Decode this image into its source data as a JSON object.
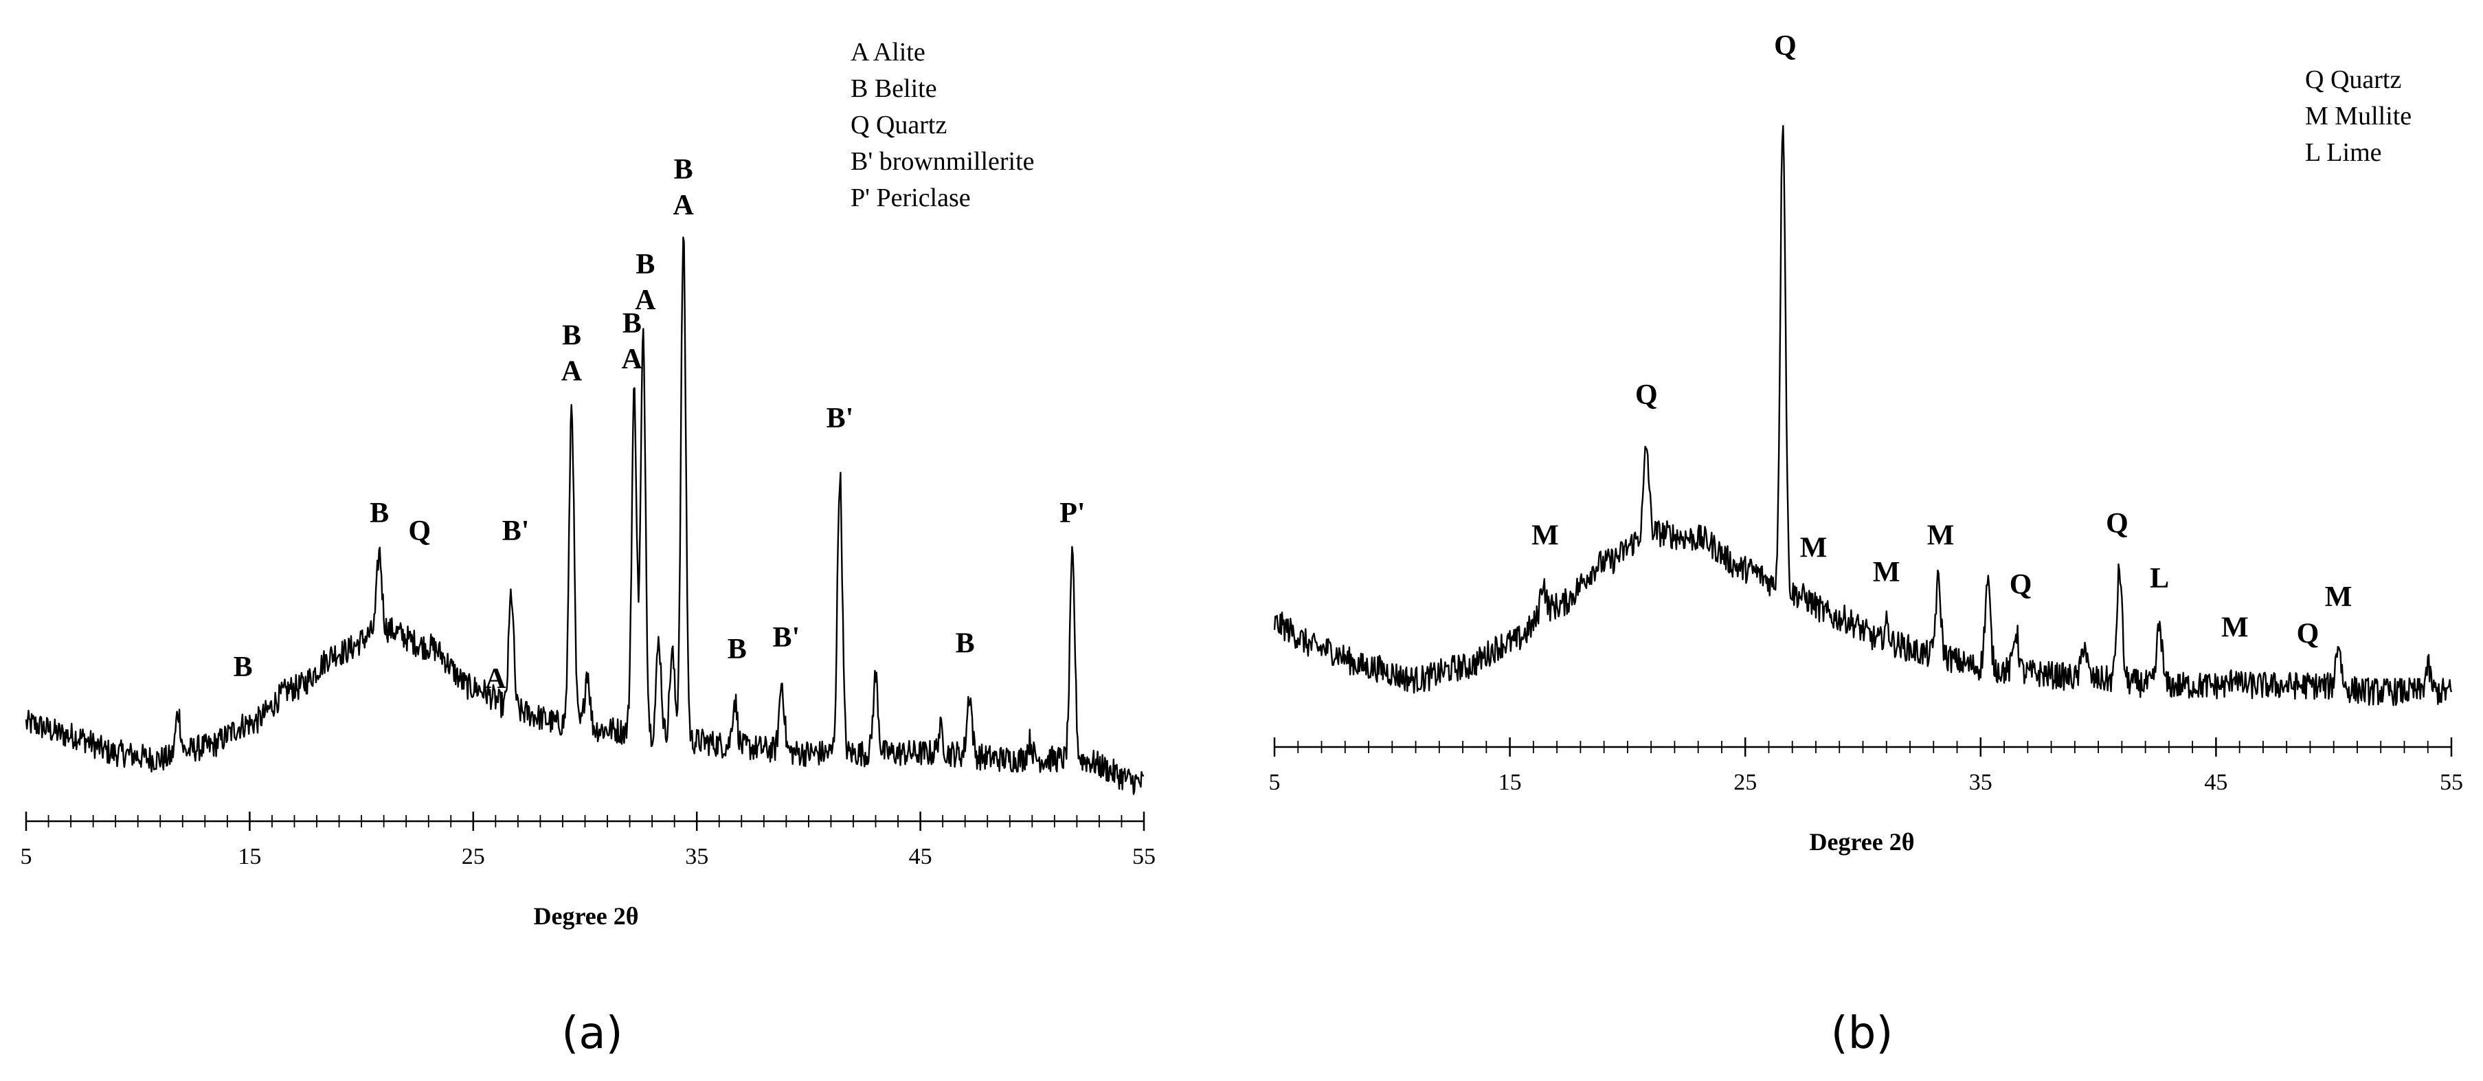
{
  "chart_data": [
    {
      "type": "line",
      "panel": "(a)",
      "xlabel": "Degree 2θ",
      "ylabel": "",
      "xlim": [
        5,
        55
      ],
      "xticks": [
        5,
        15,
        25,
        35,
        45,
        55
      ],
      "grid": false,
      "legend_position": "top-right",
      "legend": [
        "A Alite",
        "B Belite",
        "Q Quartz",
        "B' brownmillerite",
        "P' Periclase"
      ],
      "baseline": [
        [
          5,
          0.08
        ],
        [
          7,
          0.06
        ],
        [
          9,
          0.03
        ],
        [
          11,
          0.02
        ],
        [
          13,
          0.04
        ],
        [
          15,
          0.08
        ],
        [
          17,
          0.14
        ],
        [
          19,
          0.2
        ],
        [
          21,
          0.24
        ],
        [
          23,
          0.21
        ],
        [
          25,
          0.14
        ],
        [
          27,
          0.1
        ],
        [
          29,
          0.08
        ],
        [
          31,
          0.07
        ],
        [
          33,
          0.06
        ],
        [
          35,
          0.05
        ],
        [
          37,
          0.04
        ],
        [
          40,
          0.03
        ],
        [
          43,
          0.03
        ],
        [
          46,
          0.03
        ],
        [
          49,
          0.02
        ],
        [
          52,
          0.02
        ],
        [
          55,
          -0.02
        ]
      ],
      "peaks": [
        {
          "x": 11.8,
          "y": 0.1
        },
        {
          "x": 20.8,
          "y": 0.37
        },
        {
          "x": 26.7,
          "y": 0.3
        },
        {
          "x": 29.4,
          "y": 0.62
        },
        {
          "x": 30.1,
          "y": 0.17
        },
        {
          "x": 32.2,
          "y": 0.64
        },
        {
          "x": 32.6,
          "y": 0.73
        },
        {
          "x": 33.3,
          "y": 0.22
        },
        {
          "x": 33.9,
          "y": 0.2
        },
        {
          "x": 34.4,
          "y": 0.9
        },
        {
          "x": 36.7,
          "y": 0.12
        },
        {
          "x": 38.8,
          "y": 0.15
        },
        {
          "x": 41.4,
          "y": 0.5
        },
        {
          "x": 43.0,
          "y": 0.16
        },
        {
          "x": 45.9,
          "y": 0.07
        },
        {
          "x": 47.2,
          "y": 0.13
        },
        {
          "x": 49.9,
          "y": 0.05
        },
        {
          "x": 51.8,
          "y": 0.36
        }
      ],
      "ylim": [
        -0.05,
        1.0
      ],
      "annotations": [
        {
          "x": 14.7,
          "y": 0.16,
          "lines": [
            "B"
          ]
        },
        {
          "x": 20.8,
          "y": 0.42,
          "lines": [
            "B"
          ]
        },
        {
          "x": 22.6,
          "y": 0.39,
          "lines": [
            "Q"
          ]
        },
        {
          "x": 26.0,
          "y": 0.14,
          "lines": [
            "A"
          ]
        },
        {
          "x": 26.9,
          "y": 0.39,
          "lines": [
            "B'"
          ]
        },
        {
          "x": 29.4,
          "y": 0.72,
          "lines": [
            "B",
            "A"
          ]
        },
        {
          "x": 32.1,
          "y": 0.74,
          "lines": [
            "B",
            "A"
          ]
        },
        {
          "x": 32.7,
          "y": 0.84,
          "lines": [
            "B",
            "A"
          ]
        },
        {
          "x": 34.4,
          "y": 1.0,
          "lines": [
            "B",
            "A"
          ]
        },
        {
          "x": 36.8,
          "y": 0.19,
          "lines": [
            "B"
          ]
        },
        {
          "x": 39.0,
          "y": 0.21,
          "lines": [
            "B'"
          ]
        },
        {
          "x": 41.4,
          "y": 0.58,
          "lines": [
            "B'"
          ]
        },
        {
          "x": 47.0,
          "y": 0.2,
          "lines": [
            "B"
          ]
        },
        {
          "x": 51.8,
          "y": 0.42,
          "lines": [
            "P'"
          ]
        }
      ]
    },
    {
      "type": "line",
      "panel": "(b)",
      "xlabel": "Degree 2θ",
      "ylabel": "",
      "xlim": [
        5,
        55
      ],
      "xticks": [
        5,
        15,
        25,
        35,
        45,
        55
      ],
      "grid": false,
      "legend_position": "top-right",
      "legend": [
        "Q Quartz",
        "M Mullite",
        "L Lime"
      ],
      "baseline": [
        [
          5,
          0.17
        ],
        [
          7,
          0.13
        ],
        [
          9,
          0.1
        ],
        [
          11,
          0.08
        ],
        [
          13,
          0.1
        ],
        [
          15,
          0.14
        ],
        [
          17,
          0.2
        ],
        [
          19,
          0.27
        ],
        [
          21,
          0.32
        ],
        [
          23,
          0.31
        ],
        [
          25,
          0.26
        ],
        [
          27,
          0.22
        ],
        [
          29,
          0.18
        ],
        [
          31,
          0.14
        ],
        [
          33,
          0.12
        ],
        [
          35,
          0.1
        ],
        [
          37,
          0.09
        ],
        [
          40,
          0.08
        ],
        [
          43,
          0.07
        ],
        [
          46,
          0.07
        ],
        [
          49,
          0.07
        ],
        [
          52,
          0.06
        ],
        [
          55,
          0.06
        ]
      ],
      "peaks": [
        {
          "x": 16.4,
          "y": 0.24
        },
        {
          "x": 20.8,
          "y": 0.46
        },
        {
          "x": 26.6,
          "y": 1.0
        },
        {
          "x": 31.0,
          "y": 0.17
        },
        {
          "x": 33.2,
          "y": 0.24
        },
        {
          "x": 35.3,
          "y": 0.24
        },
        {
          "x": 36.5,
          "y": 0.16
        },
        {
          "x": 39.4,
          "y": 0.14
        },
        {
          "x": 40.9,
          "y": 0.26
        },
        {
          "x": 42.6,
          "y": 0.17
        },
        {
          "x": 45.8,
          "y": 0.09
        },
        {
          "x": 50.2,
          "y": 0.14
        },
        {
          "x": 54.0,
          "y": 0.1
        }
      ],
      "ylim": [
        0,
        1.1
      ],
      "annotations": [
        {
          "x": 16.5,
          "y": 0.3,
          "lines": [
            "M"
          ]
        },
        {
          "x": 20.8,
          "y": 0.53,
          "lines": [
            "Q"
          ]
        },
        {
          "x": 26.7,
          "y": 1.1,
          "lines": [
            "Q"
          ]
        },
        {
          "x": 27.9,
          "y": 0.28,
          "lines": [
            "M"
          ]
        },
        {
          "x": 31.0,
          "y": 0.24,
          "lines": [
            "M"
          ]
        },
        {
          "x": 33.3,
          "y": 0.3,
          "lines": [
            "M"
          ]
        },
        {
          "x": 36.7,
          "y": 0.22,
          "lines": [
            "Q"
          ]
        },
        {
          "x": 40.8,
          "y": 0.32,
          "lines": [
            "Q"
          ]
        },
        {
          "x": 42.6,
          "y": 0.23,
          "lines": [
            "L"
          ]
        },
        {
          "x": 45.8,
          "y": 0.15,
          "lines": [
            "M"
          ]
        },
        {
          "x": 48.9,
          "y": 0.14,
          "lines": [
            "Q"
          ]
        },
        {
          "x": 50.2,
          "y": 0.2,
          "lines": [
            "M"
          ]
        }
      ]
    }
  ]
}
